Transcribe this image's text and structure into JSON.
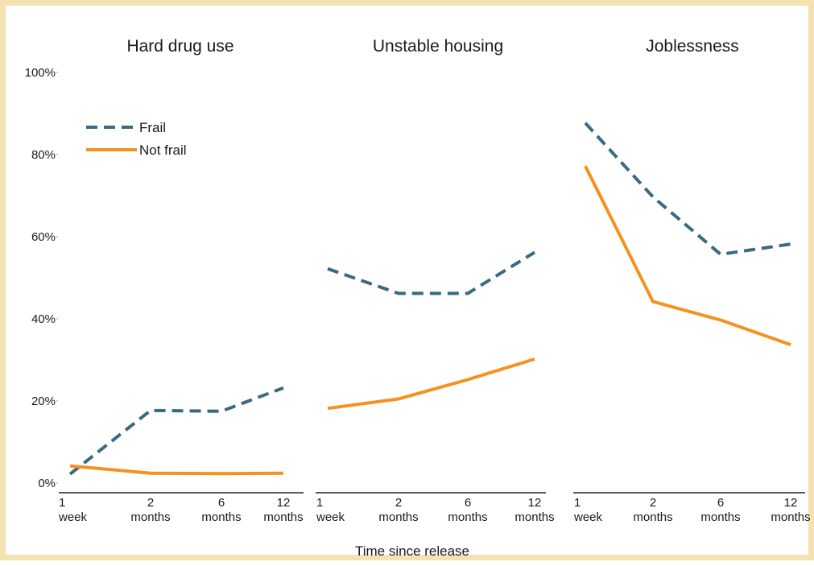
{
  "chart_data": {
    "type": "line",
    "xlabel": "Time since release",
    "ylabel": "",
    "ylim": [
      0,
      100
    ],
    "yticks": [
      "0%",
      "20%",
      "40%",
      "60%",
      "80%",
      "100%"
    ],
    "categories": [
      {
        "top": "1",
        "bottom": "week"
      },
      {
        "top": "2",
        "bottom": "months"
      },
      {
        "top": "6",
        "bottom": "months"
      },
      {
        "top": "12",
        "bottom": "months"
      }
    ],
    "legend": {
      "position": "top-left",
      "items": [
        {
          "name": "Frail",
          "color": "#3b6a80",
          "style": "dashed"
        },
        {
          "name": "Not frail",
          "color": "#f5921e",
          "style": "solid"
        }
      ]
    },
    "panels": [
      {
        "title": "Hard drug use",
        "series": [
          {
            "name": "Frail",
            "values": [
              2,
              17.5,
              17.3,
              23
            ]
          },
          {
            "name": "Not frail",
            "values": [
              4,
              2.2,
              2.1,
              2.2
            ]
          }
        ]
      },
      {
        "title": "Unstable housing",
        "series": [
          {
            "name": "Frail",
            "values": [
              52,
              46,
              46,
              56
            ]
          },
          {
            "name": "Not frail",
            "values": [
              18,
              20.3,
              25,
              30
            ]
          }
        ]
      },
      {
        "title": "Joblessness",
        "series": [
          {
            "name": "Frail",
            "values": [
              87.5,
              69.5,
              55.5,
              58
            ]
          },
          {
            "name": "Not frail",
            "values": [
              77,
              44,
              39.5,
              33.5
            ]
          }
        ]
      }
    ]
  }
}
